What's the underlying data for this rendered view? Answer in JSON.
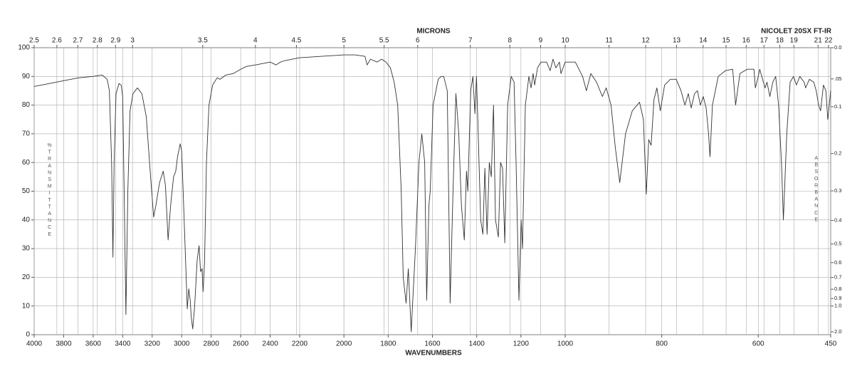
{
  "chart_data": {
    "type": "line",
    "title": "NICOLET 20SX FT-IR",
    "xlabel": "WAVENUMBERS",
    "x2label": "MICRONS",
    "ylabel": "%TRANSMITTANCE",
    "y2label": "ABSORBANCE",
    "color": "#333333",
    "grid": true,
    "xlim": [
      4000,
      450
    ],
    "xbreaks": [
      2200,
      1000
    ],
    "xticks": [
      4000,
      3800,
      3600,
      3400,
      3200,
      3000,
      2800,
      2600,
      2400,
      2200,
      2000,
      1800,
      1600,
      1400,
      1200,
      1000,
      800,
      600,
      450
    ],
    "x2ticks": [
      2.5,
      2.6,
      2.7,
      2.8,
      2.9,
      3,
      3.5,
      4,
      4.5,
      5,
      5.5,
      6,
      7,
      8,
      9,
      10,
      11,
      12,
      13,
      14,
      15,
      16,
      17,
      18,
      19,
      21,
      22
    ],
    "ylim": [
      0,
      100
    ],
    "yticks": [
      0,
      10,
      20,
      30,
      40,
      50,
      60,
      70,
      80,
      90,
      100
    ],
    "y2ticks": [
      {
        "value": 0.0,
        "label": "0.0"
      },
      {
        "value": 0.05,
        "label": ".05"
      },
      0.1,
      0.2,
      0.3,
      0.4,
      0.5,
      0.6,
      0.7,
      0.8,
      0.9,
      {
        "value": 1.0,
        "label": "1.0"
      },
      {
        "value": 2.0,
        "label": "2.0"
      }
    ],
    "x": [
      4000,
      3900,
      3800,
      3700,
      3600,
      3540,
      3505,
      3490,
      3475,
      3466,
      3458,
      3445,
      3425,
      3410,
      3400,
      3390,
      3378,
      3365,
      3350,
      3330,
      3300,
      3270,
      3240,
      3215,
      3190,
      3175,
      3150,
      3125,
      3110,
      3092,
      3075,
      3055,
      3040,
      3028,
      3010,
      3000,
      2990,
      2975,
      2962,
      2952,
      2942,
      2935,
      2925,
      2912,
      2895,
      2882,
      2872,
      2862,
      2855,
      2845,
      2832,
      2815,
      2790,
      2760,
      2740,
      2700,
      2650,
      2600,
      2560,
      2500,
      2450,
      2400,
      2360,
      2330,
      2300,
      2250,
      2200,
      2100,
      2000,
      1950,
      1905,
      1895,
      1880,
      1850,
      1830,
      1810,
      1790,
      1773,
      1757,
      1741,
      1732,
      1719,
      1709,
      1696,
      1677,
      1661,
      1648,
      1635,
      1626,
      1616,
      1610,
      1597,
      1574,
      1560,
      1549,
      1533,
      1520,
      1507,
      1494,
      1481,
      1469,
      1456,
      1446,
      1440,
      1427,
      1417,
      1408,
      1401,
      1395,
      1382,
      1372,
      1363,
      1353,
      1343,
      1334,
      1324,
      1315,
      1302,
      1292,
      1283,
      1273,
      1260,
      1244,
      1231,
      1222,
      1209,
      1199,
      1193,
      1180,
      1164,
      1154,
      1145,
      1138,
      1125,
      1109,
      1084,
      1068,
      1055,
      1042,
      1026,
      1019,
      1000,
      979,
      964,
      956,
      947,
      935,
      923,
      915,
      905,
      896,
      887,
      875,
      861,
      846,
      838,
      832,
      827,
      822,
      816,
      810,
      803,
      794,
      782,
      770,
      760,
      752,
      745,
      739,
      732,
      726,
      720,
      714,
      708,
      703,
      700,
      695,
      683,
      668,
      653,
      647,
      643,
      638,
      623,
      609,
      606,
      600,
      597,
      586,
      582,
      576,
      570,
      564,
      558,
      552,
      548,
      541,
      534,
      527,
      521,
      514,
      505,
      502,
      494,
      485,
      480,
      475,
      471,
      465,
      460,
      456,
      450
    ],
    "values": [
      86.5,
      87.5,
      88.5,
      89.5,
      90,
      90.5,
      89,
      85,
      60,
      27,
      60,
      84,
      87.5,
      87,
      83,
      50,
      7,
      50,
      78,
      84,
      86,
      84,
      76,
      58,
      41,
      45,
      53,
      57,
      52,
      33,
      45,
      55,
      57,
      62,
      66.5,
      64,
      50,
      28,
      9,
      16,
      12,
      6,
      2,
      10,
      26,
      31,
      22,
      23,
      15,
      25,
      60,
      80,
      87,
      89.5,
      89,
      90.5,
      91,
      92.5,
      93.5,
      94,
      94.5,
      95,
      94,
      95,
      95.5,
      96,
      96.5,
      97,
      97.5,
      97.5,
      97,
      94,
      96,
      95,
      96,
      95,
      93,
      88,
      80,
      50,
      20,
      11,
      23,
      1,
      30,
      60,
      70,
      60,
      12,
      45,
      50,
      80,
      89,
      90,
      90,
      85,
      11,
      50,
      84,
      70,
      45,
      33,
      57,
      50,
      85,
      90,
      77,
      90,
      75,
      40,
      35,
      58,
      35,
      60,
      55,
      80,
      40,
      34,
      60,
      58,
      32,
      80,
      90,
      88,
      60,
      12,
      40,
      30,
      80,
      90,
      86,
      91,
      87,
      93,
      95,
      95,
      92,
      96,
      93,
      95,
      91,
      95,
      95,
      90,
      85,
      91,
      88,
      83,
      86,
      80,
      65,
      53,
      70,
      78,
      81,
      75,
      49,
      68,
      66,
      82,
      86,
      78,
      87,
      89,
      89,
      85,
      80,
      84,
      79,
      84,
      85,
      80,
      83,
      79,
      70,
      62,
      80,
      90,
      92,
      92.5,
      80,
      85,
      91,
      92.5,
      92.5,
      86,
      90,
      92.5,
      86,
      88,
      83,
      88,
      90,
      80,
      60,
      40,
      70,
      88,
      90,
      87,
      90,
      88,
      86,
      89,
      88,
      85,
      80,
      78,
      87,
      85,
      75,
      85
    ]
  }
}
